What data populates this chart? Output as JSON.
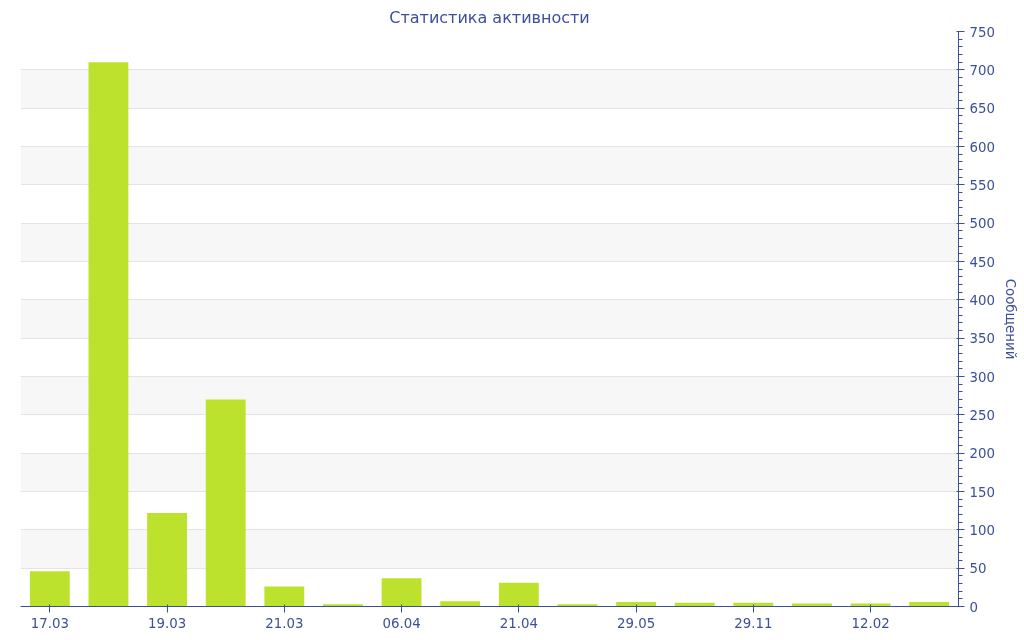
{
  "chart_data": {
    "type": "bar",
    "title": "Статистика активности",
    "ylabel": "Сообщений",
    "categories": [
      "17.03",
      null,
      "19.03",
      null,
      "21.03",
      null,
      "06.04",
      null,
      "21.04",
      null,
      "29.05",
      null,
      "29.11",
      null,
      "12.02",
      null
    ],
    "series": [
      {
        "color": "#bde22e",
        "values": [
          46,
          710,
          122,
          270,
          26,
          3,
          37,
          7,
          31,
          3,
          6,
          5,
          5,
          4,
          4,
          6
        ]
      }
    ],
    "ylim": [
      0,
      750
    ],
    "yticks": [
      0,
      50,
      100,
      150,
      200,
      250,
      300,
      350,
      400,
      450,
      500,
      550,
      600,
      650,
      700,
      750
    ],
    "grid": "y"
  }
}
